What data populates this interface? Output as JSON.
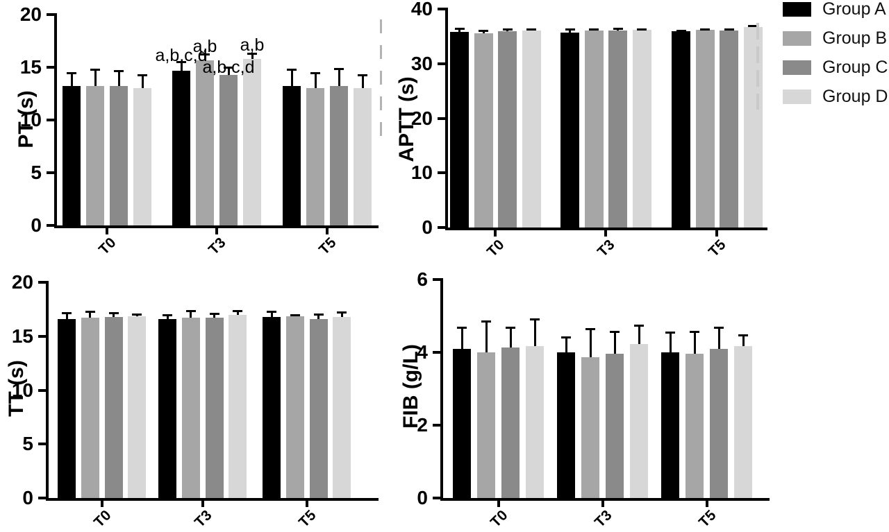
{
  "figure": {
    "background": "#ffffff",
    "legend": {
      "items": [
        {
          "label": "Group A",
          "color": "#000000"
        },
        {
          "label": "Group B",
          "color": "#a6a6a6"
        },
        {
          "label": "Group C",
          "color": "#8a8a8a"
        },
        {
          "label": "Group D",
          "color": "#d7d7d7"
        }
      ]
    }
  },
  "chart_data": [
    {
      "id": "PT",
      "type": "bar",
      "title": "",
      "xlabel": "",
      "ylabel": "PT (s)",
      "ylim": [
        0,
        20
      ],
      "yticks": [
        0,
        5,
        10,
        15,
        20
      ],
      "grid": false,
      "legend_position": "shared-top-right-outside",
      "categories": [
        "T0",
        "T3",
        "T5"
      ],
      "series": [
        {
          "name": "Group A",
          "values": [
            13.2,
            14.7,
            13.2
          ],
          "sd": [
            1.3,
            0.8,
            1.6
          ]
        },
        {
          "name": "Group B",
          "values": [
            13.2,
            15.65,
            13.0
          ],
          "sd": [
            1.6,
            0.6,
            1.5
          ]
        },
        {
          "name": "Group C",
          "values": [
            13.2,
            14.3,
            13.2
          ],
          "sd": [
            1.5,
            0.7,
            1.7
          ]
        },
        {
          "name": "Group D",
          "values": [
            13.0,
            15.8,
            13.0
          ],
          "sd": [
            1.3,
            0.5,
            1.3
          ]
        }
      ],
      "annotations": [
        {
          "text": "a,b,c,d",
          "category_index": 1,
          "series_index": 0,
          "dy": 7
        },
        {
          "text": "a,b",
          "category_index": 1,
          "series_index": 1,
          "dy": 5
        },
        {
          "text": "a,b,c,d",
          "category_index": 1,
          "series_index": 2,
          "dy": 16
        },
        {
          "text": "a,b",
          "category_index": 1,
          "series_index": 3,
          "dy": 4
        }
      ]
    },
    {
      "id": "APTT",
      "type": "bar",
      "title": "",
      "xlabel": "",
      "ylabel": "APTT (s)",
      "ylim": [
        0,
        40
      ],
      "yticks": [
        0,
        10,
        20,
        30,
        40
      ],
      "grid": false,
      "legend_position": "shared-top-right-outside",
      "categories": [
        "T0",
        "T3",
        "T5"
      ],
      "series": [
        {
          "name": "Group A",
          "values": [
            35.8,
            35.7,
            35.9
          ],
          "sd": [
            0.6,
            0.6,
            0.2
          ]
        },
        {
          "name": "Group B",
          "values": [
            35.6,
            36.1,
            36.2
          ],
          "sd": [
            0.5,
            0.2,
            0.1
          ]
        },
        {
          "name": "Group C",
          "values": [
            35.9,
            36.1,
            36.1
          ],
          "sd": [
            0.4,
            0.3,
            0.2
          ]
        },
        {
          "name": "Group D",
          "values": [
            36.1,
            36.2,
            36.7
          ],
          "sd": [
            0.2,
            0.1,
            0.2
          ]
        }
      ],
      "annotations": []
    },
    {
      "id": "TT",
      "type": "bar",
      "title": "",
      "xlabel": "",
      "ylabel": "TT (s)",
      "ylim": [
        0,
        20
      ],
      "yticks": [
        0,
        5,
        10,
        15,
        20
      ],
      "grid": false,
      "legend_position": "shared-top-right-outside",
      "categories": [
        "T0",
        "T3",
        "T5"
      ],
      "series": [
        {
          "name": "Group A",
          "values": [
            16.6,
            16.6,
            16.8
          ],
          "sd": [
            0.6,
            0.4,
            0.5
          ]
        },
        {
          "name": "Group B",
          "values": [
            16.7,
            16.7,
            16.85
          ],
          "sd": [
            0.6,
            0.65,
            0.1
          ]
        },
        {
          "name": "Group C",
          "values": [
            16.8,
            16.7,
            16.6
          ],
          "sd": [
            0.35,
            0.4,
            0.45
          ]
        },
        {
          "name": "Group D",
          "values": [
            16.85,
            17.0,
            16.8
          ],
          "sd": [
            0.2,
            0.35,
            0.45
          ]
        }
      ],
      "annotations": []
    },
    {
      "id": "FIB",
      "type": "bar",
      "title": "",
      "xlabel": "",
      "ylabel": "FIB (g/L)",
      "ylim": [
        0,
        6
      ],
      "yticks": [
        0,
        2,
        4,
        6
      ],
      "grid": false,
      "legend_position": "shared-top-right-outside",
      "categories": [
        "T0",
        "T3",
        "T5"
      ],
      "series": [
        {
          "name": "Group A",
          "values": [
            4.1,
            4.0,
            4.0
          ],
          "sd": [
            0.58,
            0.42,
            0.55
          ]
        },
        {
          "name": "Group B",
          "values": [
            4.0,
            3.86,
            3.97
          ],
          "sd": [
            0.85,
            0.78,
            0.6
          ]
        },
        {
          "name": "Group C",
          "values": [
            4.13,
            3.97,
            4.09
          ],
          "sd": [
            0.55,
            0.6,
            0.6
          ]
        },
        {
          "name": "Group D",
          "values": [
            4.18,
            4.22,
            4.18
          ],
          "sd": [
            0.74,
            0.53,
            0.3
          ]
        }
      ],
      "annotations": []
    }
  ]
}
